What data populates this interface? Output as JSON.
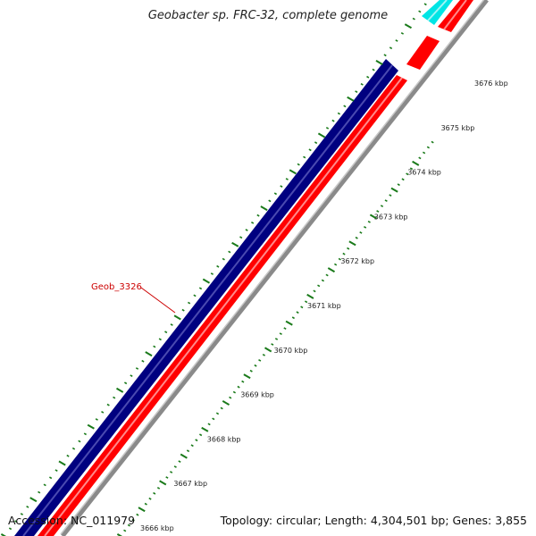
{
  "title": "Geobacter sp. FRC-32, complete genome",
  "accession": "Accession: NC_011979",
  "topology": "Topology: circular; Length: 4,304,501 bp; Genes: 3,855",
  "gene_label": "Geob_3326",
  "ticks": [
    "3666 kbp",
    "3667 kbp",
    "3668 kbp",
    "3669 kbp",
    "3670 kbp",
    "3671 kbp",
    "3672 kbp",
    "3673 kbp",
    "3674 kbp",
    "3675 kbp",
    "3676 kbp"
  ],
  "colors": {
    "reverse_strand_gene": "#000080",
    "forward_strand_gene": "#ff0000",
    "rna_feature": "#00e5e5",
    "gene_label": "#cc0000",
    "tick_mark": "#1a7a1a",
    "backbone": "#808080"
  }
}
